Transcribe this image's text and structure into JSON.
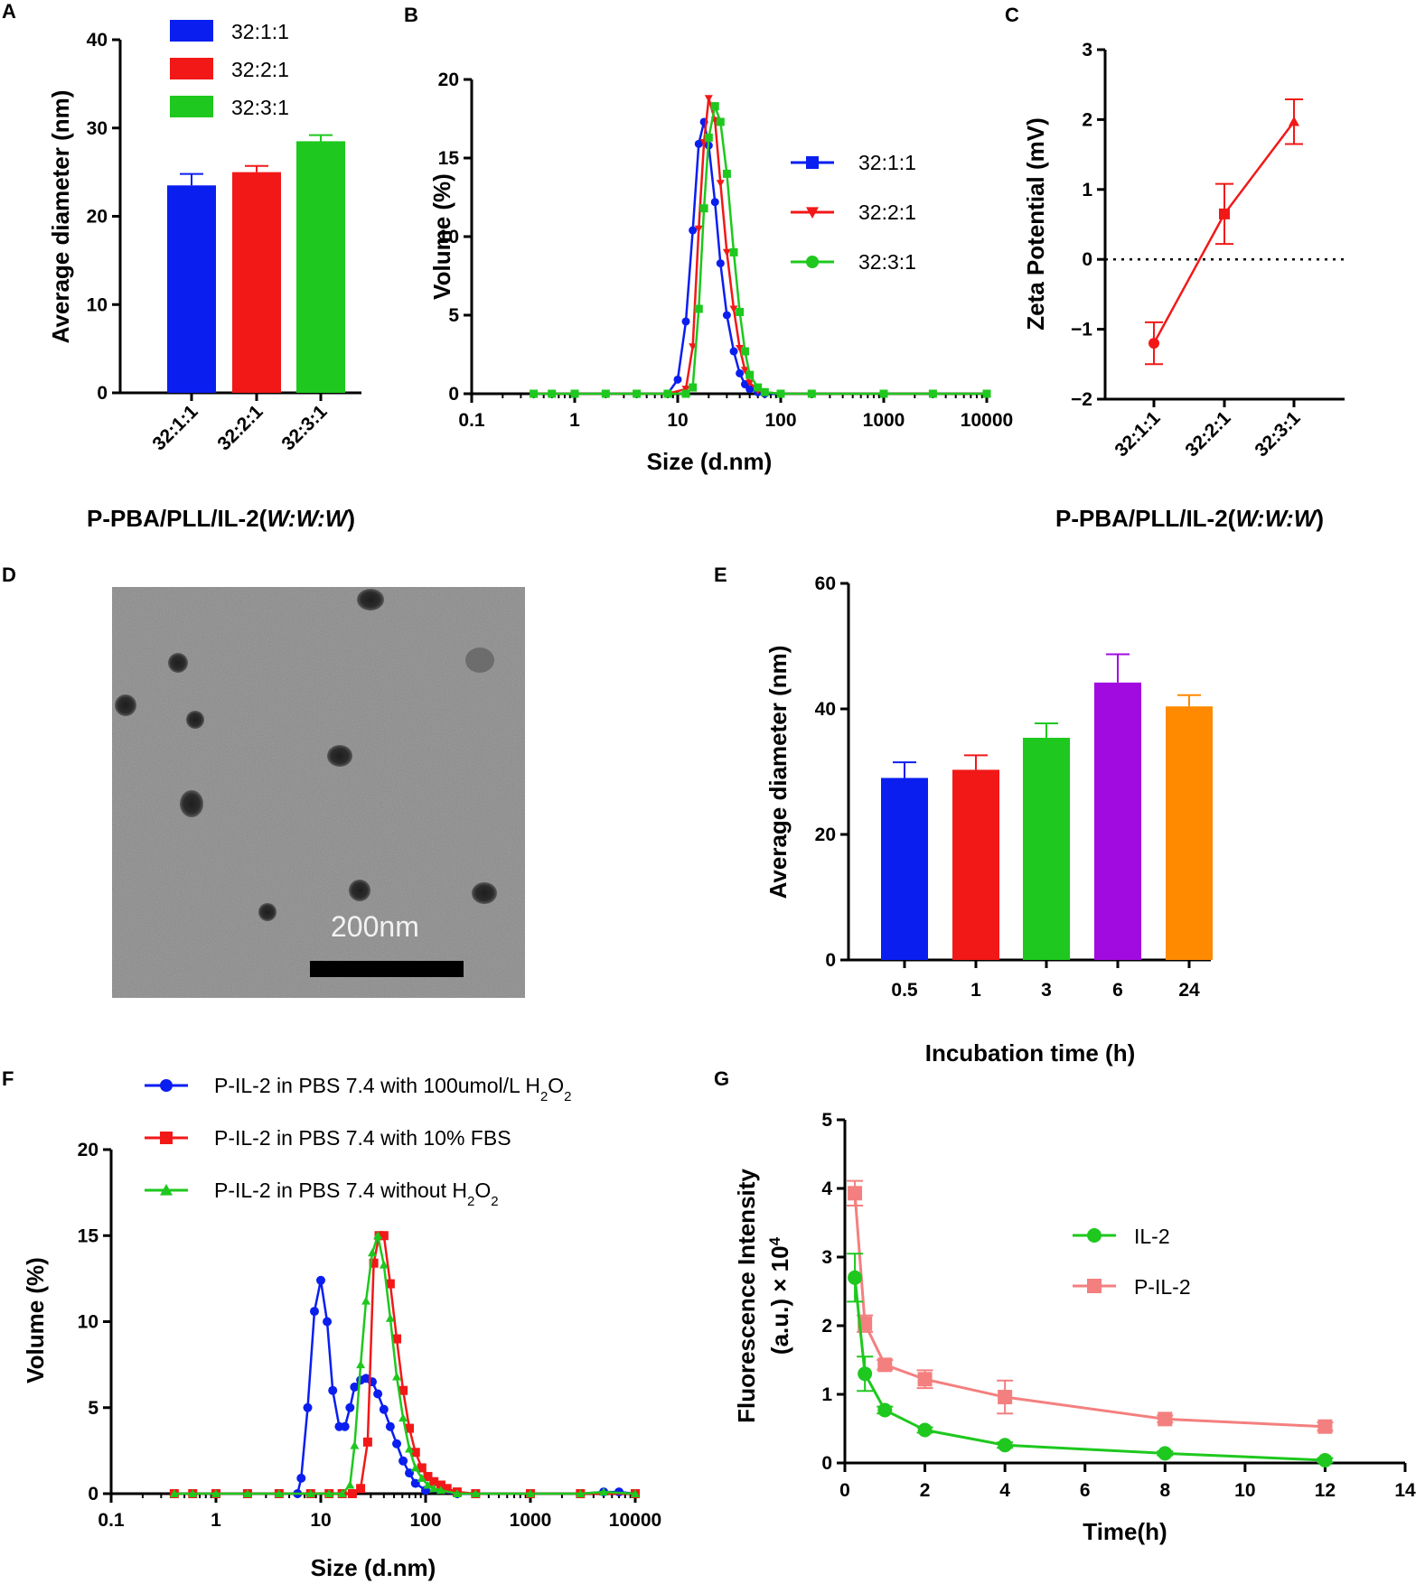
{
  "panel_labels": [
    "A",
    "B",
    "C",
    "D",
    "E",
    "F",
    "G"
  ],
  "colors": {
    "blue": "#0a1ef0",
    "red": "#f21818",
    "green": "#1ec81e",
    "purple": "#a20be0",
    "orange": "#ff8a00",
    "pink": "#f47f7f",
    "axis": "#000000"
  },
  "shared_xlabel": "P-PBA/PLL/IL-2(",
  "shared_xlabel_italic": "W:W:W",
  "shared_xlabel_end": ")",
  "tem": {
    "scale_label": "200nm"
  },
  "chart_data": [
    {
      "id": "A",
      "type": "bar",
      "ylabel": "Average diameter (nm)",
      "ylim": [
        0,
        40
      ],
      "yticks": [
        0,
        10,
        20,
        30,
        40
      ],
      "categories": [
        "32:1:1",
        "32:2:1",
        "32:3:1"
      ],
      "values": [
        23.5,
        25.0,
        28.5
      ],
      "errors": [
        1.3,
        0.7,
        0.7
      ],
      "legend": [
        "32:1:1",
        "32:2:1",
        "32:3:1"
      ],
      "xlabel": "P-PBA/PLL/IL-2(W:W:W)"
    },
    {
      "id": "B",
      "type": "line",
      "xscale": "log",
      "xlim": [
        0.1,
        10000
      ],
      "xticks": [
        "0.1",
        "1",
        "10",
        "100",
        "1000",
        "10000"
      ],
      "ylim": [
        0,
        20
      ],
      "yticks": [
        0,
        5,
        10,
        15,
        20
      ],
      "xlabel": "Size (d.nm)",
      "ylabel": "Volume (%)",
      "series": [
        {
          "name": "32:1:1",
          "marker": "square",
          "x": [
            0.4,
            0.6,
            1,
            2,
            4,
            8,
            10,
            12,
            14,
            16,
            18,
            20,
            23,
            26,
            30,
            35,
            40,
            45,
            50,
            60,
            70,
            100,
            200,
            1000,
            3000,
            10000
          ],
          "y": [
            0,
            0,
            0,
            0,
            0,
            0,
            0.9,
            4.6,
            10.4,
            15.9,
            17.3,
            15.8,
            12.2,
            8.3,
            5.0,
            2.7,
            1.3,
            0.6,
            0.3,
            0.1,
            0,
            0,
            0,
            0,
            0,
            0
          ]
        },
        {
          "name": "32:2:1",
          "marker": "triangle",
          "x": [
            0.4,
            0.6,
            1,
            2,
            4,
            8,
            12,
            14,
            16,
            18,
            20,
            23,
            26,
            30,
            35,
            40,
            45,
            50,
            60,
            70,
            100,
            200,
            1000,
            3000,
            10000
          ],
          "y": [
            0,
            0,
            0,
            0,
            0,
            0,
            0.3,
            3.0,
            10.5,
            16.0,
            18.8,
            17.4,
            13.4,
            9.0,
            5.4,
            2.9,
            1.5,
            0.7,
            0.2,
            0.1,
            0,
            0,
            0,
            0,
            0
          ]
        },
        {
          "name": "32:3:1",
          "marker": "circle",
          "x": [
            0.4,
            0.6,
            1,
            2,
            4,
            8,
            12,
            14,
            16,
            18,
            20,
            23,
            26,
            30,
            35,
            40,
            45,
            50,
            60,
            70,
            100,
            200,
            1000,
            3000,
            10000
          ],
          "y": [
            0,
            0,
            0,
            0,
            0,
            0,
            0,
            0.4,
            5.4,
            11.8,
            16.3,
            18.3,
            17.3,
            14.0,
            9.0,
            5.2,
            2.7,
            1.2,
            0.4,
            0.1,
            0,
            0,
            0,
            0,
            0
          ]
        }
      ]
    },
    {
      "id": "C",
      "type": "line",
      "ylabel": "Zeta Potential (mV)",
      "ylim": [
        -2,
        3
      ],
      "yticks": [
        -2,
        -1,
        0,
        1,
        2,
        3
      ],
      "categories": [
        "32:1:1",
        "32:2:1",
        "32:3:1"
      ],
      "values": [
        -1.2,
        0.65,
        1.97
      ],
      "errors": [
        0.3,
        0.43,
        0.32
      ],
      "reference_line": 0,
      "xlabel": "P-PBA/PLL/IL-2(W:W:W)"
    },
    {
      "id": "E",
      "type": "bar",
      "ylabel": "Average diameter (nm)",
      "ylim": [
        0,
        60
      ],
      "yticks": [
        0,
        20,
        40,
        60
      ],
      "categories": [
        "0.5",
        "1",
        "3",
        "6",
        "24"
      ],
      "values": [
        29.0,
        30.3,
        35.4,
        44.2,
        40.4
      ],
      "errors": [
        2.5,
        2.3,
        2.3,
        4.5,
        1.8
      ],
      "xlabel": "Incubation time (h)"
    },
    {
      "id": "F",
      "type": "line",
      "xscale": "log",
      "xlim": [
        0.1,
        10000
      ],
      "xticks": [
        "0.1",
        "1",
        "10",
        "100",
        "1000",
        "10000"
      ],
      "ylim": [
        0,
        20
      ],
      "yticks": [
        0,
        5,
        10,
        15,
        20
      ],
      "xlabel": "Size (d.nm)",
      "ylabel": "Volume (%)",
      "series": [
        {
          "name": "P-IL-2 in PBS 7.4 with 100umol/L H",
          "sub": "2",
          "mid": "O",
          "sub2": "2",
          "marker": "circle",
          "x": [
            0.4,
            0.6,
            1,
            2,
            4,
            6,
            6.5,
            7.5,
            8.7,
            10,
            11.5,
            13,
            15,
            17,
            19,
            21,
            24,
            27,
            31,
            35,
            40,
            46,
            53,
            61,
            70,
            80,
            100,
            200,
            1000,
            3000,
            5000,
            7000,
            10000
          ],
          "y": [
            0,
            0,
            0,
            0,
            0,
            0,
            0.9,
            5.0,
            10.6,
            12.4,
            10.0,
            6.0,
            3.9,
            3.9,
            5.0,
            6.2,
            6.6,
            6.7,
            6.5,
            5.8,
            4.9,
            3.9,
            2.9,
            1.9,
            1.2,
            0.6,
            0.2,
            0,
            0,
            0,
            0.1,
            0.1,
            0
          ]
        },
        {
          "name": "P-IL-2 in PBS 7.4 with 10% FBS",
          "marker": "square",
          "x": [
            0.4,
            0.6,
            1,
            2,
            4,
            8,
            12,
            16,
            20,
            24,
            28,
            32,
            36,
            40,
            46,
            53,
            61,
            70,
            80,
            92,
            105,
            120,
            140,
            160,
            200,
            300,
            1000,
            3000,
            10000
          ],
          "y": [
            0,
            0,
            0,
            0,
            0,
            0,
            0,
            0,
            0,
            0.3,
            3.0,
            13.4,
            15.0,
            15.0,
            12.2,
            9.0,
            6.0,
            3.8,
            2.4,
            1.5,
            1.0,
            0.7,
            0.5,
            0.3,
            0.1,
            0,
            0,
            0,
            0
          ]
        },
        {
          "name": "P-IL-2 in PBS 7.4 without H",
          "sub": "2",
          "mid": "O",
          "sub2": "2",
          "marker": "triangle",
          "x": [
            0.4,
            0.6,
            1,
            2,
            4,
            8,
            12,
            16,
            19,
            21,
            24,
            27,
            31,
            35,
            40,
            46,
            53,
            61,
            70,
            80,
            92,
            105,
            120,
            140,
            200,
            300,
            1000,
            3000,
            5000,
            10000
          ],
          "y": [
            0,
            0,
            0,
            0,
            0,
            0,
            0,
            0,
            0.5,
            2.8,
            7.5,
            11.2,
            14.0,
            15.0,
            13.3,
            10.2,
            6.8,
            4.4,
            2.6,
            1.5,
            0.9,
            0.5,
            0.3,
            0.2,
            0,
            0,
            0,
            0,
            0.1,
            0
          ]
        }
      ]
    },
    {
      "id": "G",
      "type": "line",
      "xlim": [
        0,
        14
      ],
      "xticks": [
        0,
        2,
        4,
        6,
        8,
        10,
        12,
        14
      ],
      "ylim": [
        0,
        5
      ],
      "yticks": [
        0,
        1,
        2,
        3,
        4,
        5
      ],
      "xlabel": "Time(h)",
      "ylabel_line1": "Fluorescence Intensity",
      "ylabel_line2": "(a.u.) × 10",
      "ylabel_sup": "4",
      "series": [
        {
          "name": "IL-2",
          "marker": "circle",
          "x": [
            0.25,
            0.5,
            1,
            2,
            4,
            8,
            12
          ],
          "y": [
            2.7,
            1.3,
            0.77,
            0.48,
            0.26,
            0.14,
            0.04
          ],
          "err": [
            0.35,
            0.25,
            0.05,
            0.04,
            0.04,
            0.03,
            0.03
          ]
        },
        {
          "name": "P-IL-2",
          "marker": "square",
          "x": [
            0.25,
            0.5,
            1,
            2,
            4,
            8,
            12
          ],
          "y": [
            3.93,
            2.03,
            1.43,
            1.22,
            0.96,
            0.64,
            0.53
          ],
          "err": [
            0.18,
            0.12,
            0.07,
            0.13,
            0.24,
            0.05,
            0.06
          ]
        }
      ]
    }
  ]
}
